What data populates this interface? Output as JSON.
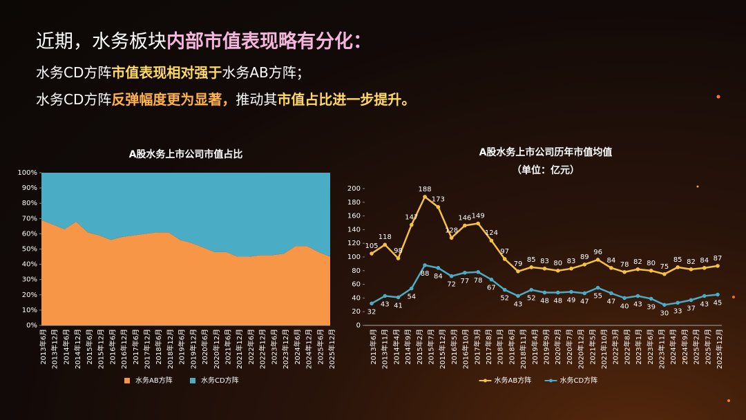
{
  "header": {
    "lines": [
      [
        {
          "text": "近期，水务板块",
          "color": "#ffffff"
        },
        {
          "text": "内部市值表现略有分化：",
          "color": "#f4b6dc",
          "bold": true
        }
      ],
      [
        {
          "text": "水务CD方阵",
          "color": "#ffffff"
        },
        {
          "text": "市值表现相对强于",
          "color": "#ffd966",
          "bold": true
        },
        {
          "text": "水务AB方阵；",
          "color": "#ffffff"
        }
      ],
      [
        {
          "text": "水务CD方阵",
          "color": "#ffffff"
        },
        {
          "text": "反弹幅度更为显著，",
          "color": "#ffb347",
          "bold": true
        },
        {
          "text": "推动其",
          "color": "#ffffff"
        },
        {
          "text": "市值占比进一步提升。",
          "color": "#ffd966",
          "bold": true
        }
      ]
    ]
  },
  "chart_data": [
    {
      "type": "stacked_area",
      "title": "A股水务上市公司市值占比",
      "categories": [
        "2013年6月",
        "2013年12月",
        "2014年6月",
        "2014年12月",
        "2015年6月",
        "2015年12月",
        "2016年6月",
        "2016年12月",
        "2017年6月",
        "2017年12月",
        "2018年6月",
        "2018年12月",
        "2019年6月",
        "2019年12月",
        "2020年6月",
        "2020年12月",
        "2021年6月",
        "2021年12月",
        "2022年6月",
        "2022年12月",
        "2023年6月",
        "2023年12月",
        "2024年6月",
        "2024年12月",
        "2025年6月",
        "2025年12月"
      ],
      "series": [
        {
          "name": "水务AB方阵",
          "color": "#f79646",
          "values": [
            69,
            66,
            63,
            68,
            61,
            59,
            56,
            58,
            59,
            60,
            61,
            61,
            56,
            54,
            51,
            48,
            48,
            45,
            45,
            46,
            46,
            47,
            52,
            52,
            48,
            45
          ]
        },
        {
          "name": "水务CD方阵",
          "color": "#4bacc6",
          "values": [
            31,
            34,
            37,
            32,
            39,
            41,
            44,
            42,
            41,
            40,
            39,
            39,
            44,
            46,
            49,
            52,
            52,
            55,
            55,
            54,
            54,
            53,
            48,
            48,
            52,
            55
          ]
        }
      ],
      "ylim": [
        0,
        100
      ],
      "yticks": [
        {
          "value": 0,
          "label": "0%"
        },
        {
          "value": 10,
          "label": "10%"
        },
        {
          "value": 20,
          "label": "20%"
        },
        {
          "value": 30,
          "label": "30%"
        },
        {
          "value": 40,
          "label": "40%"
        },
        {
          "value": 50,
          "label": "50%"
        },
        {
          "value": 60,
          "label": "60%"
        },
        {
          "value": 70,
          "label": "70%"
        },
        {
          "value": 80,
          "label": "80%"
        },
        {
          "value": 90,
          "label": "90%"
        },
        {
          "value": 100,
          "label": "100%"
        }
      ],
      "legend": "bottom"
    },
    {
      "type": "line",
      "title": "A股水务上市公司历年市值均值",
      "subtitle": "（单位：亿元）",
      "xticks": [
        "2013年6月",
        "2013年11月",
        "2014年4月",
        "2014年9月",
        "2015年2月",
        "2015年7月",
        "2015年12月",
        "2016年5月",
        "2016年10月",
        "2017年3月",
        "2017年8月",
        "2018年1月",
        "2018年6月",
        "2018年11月",
        "2019年4月",
        "2019年9月",
        "2020年2月",
        "2020年7月",
        "2020年12月",
        "2021年5月",
        "2021年10月",
        "2022年3月",
        "2022年8月",
        "2023年1月",
        "2023年6月",
        "2023年11月",
        "2024年4月",
        "2024年9月",
        "2025年2月",
        "2025年7月",
        "2025年12月"
      ],
      "series": [
        {
          "name": "水务AB方阵",
          "color": "#f5c242",
          "values": [
            105,
            118,
            98,
            147,
            188,
            173,
            128,
            146,
            149,
            124,
            97,
            79,
            85,
            83,
            80,
            83,
            89,
            96,
            84,
            78,
            82,
            80,
            75,
            85,
            82,
            84,
            87
          ]
        },
        {
          "name": "水务CD方阵",
          "color": "#4bacc6",
          "values": [
            32,
            43,
            41,
            54,
            88,
            84,
            72,
            77,
            78,
            67,
            52,
            43,
            52,
            48,
            48,
            49,
            47,
            55,
            47,
            40,
            43,
            39,
            30,
            33,
            37,
            43,
            45
          ]
        }
      ],
      "ylim": [
        0,
        200
      ],
      "yticks": [
        0,
        20,
        40,
        60,
        80,
        100,
        120,
        140,
        160,
        180,
        200
      ],
      "legend": "bottom"
    }
  ]
}
